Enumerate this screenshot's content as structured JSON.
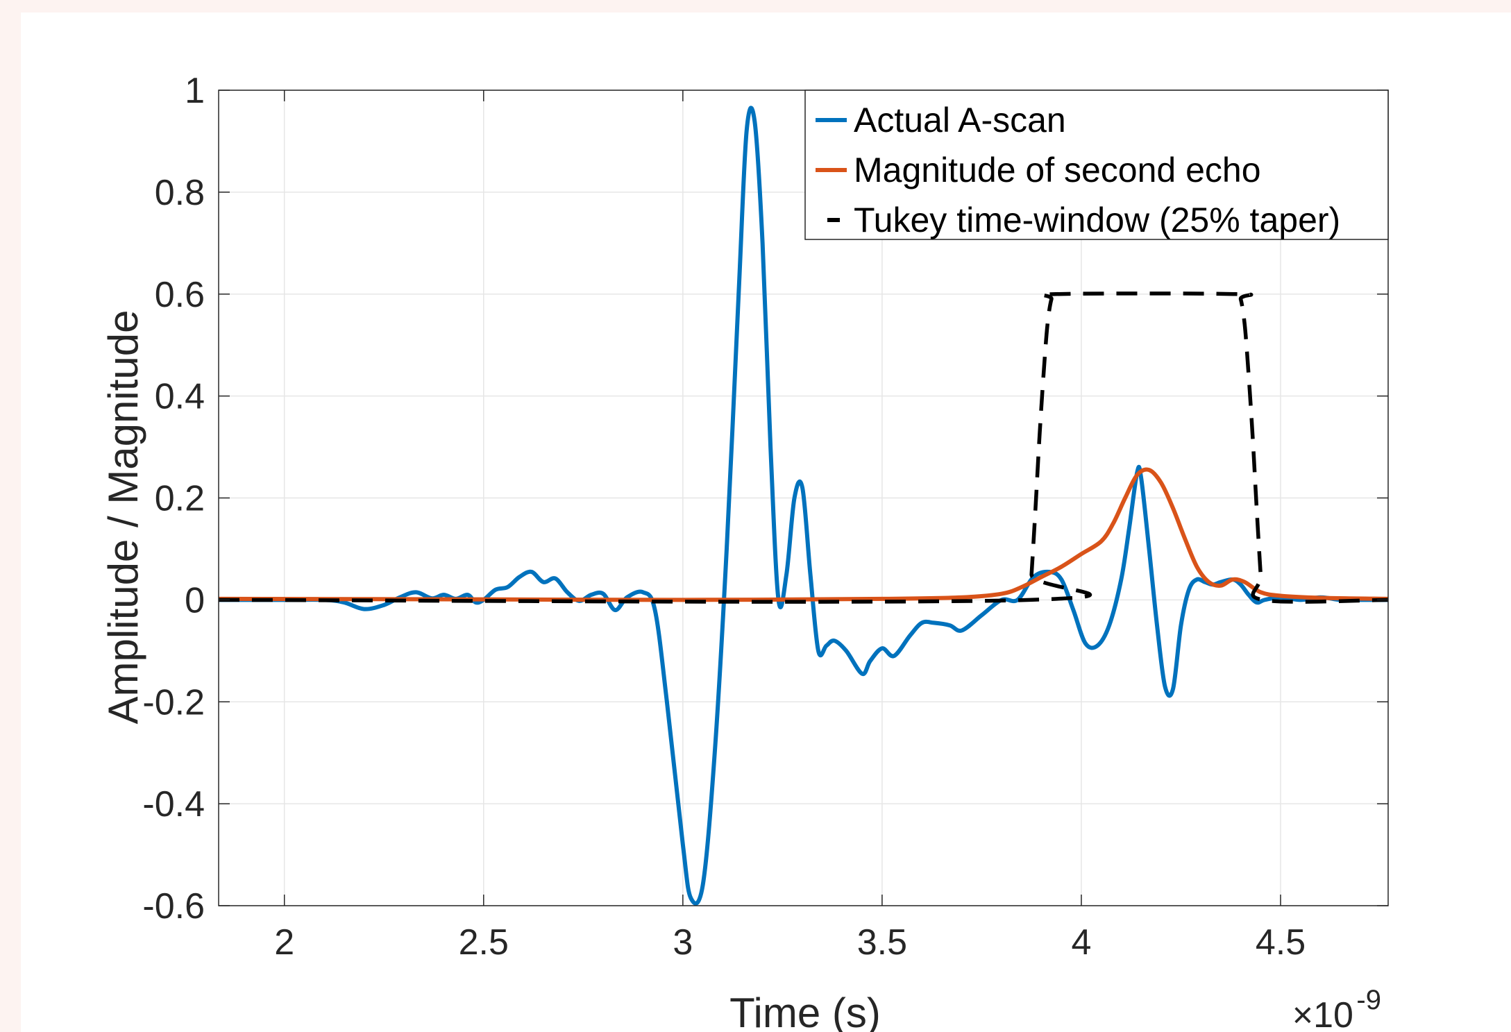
{
  "chart_data": {
    "type": "line",
    "xlabel": "Time (s)",
    "ylabel": "Amplitude / Magnitude",
    "x_multiplier": {
      "base": "×10",
      "exponent": "-9"
    },
    "xlim": [
      1.835,
      4.77
    ],
    "ylim": [
      -0.6,
      1.0
    ],
    "xticks": [
      2,
      2.5,
      3,
      3.5,
      4,
      4.5
    ],
    "xtick_labels": [
      "2",
      "2.5",
      "3",
      "3.5",
      "4",
      "4.5"
    ],
    "yticks": [
      -0.6,
      -0.4,
      -0.2,
      0,
      0.2,
      0.4,
      0.6,
      0.8,
      1
    ],
    "ytick_labels": [
      "-0.6",
      "-0.4",
      "-0.2",
      "0",
      "0.2",
      "0.4",
      "0.6",
      "0.8",
      "1"
    ],
    "grid": true,
    "legend_position": "top-right",
    "series": [
      {
        "name": "Actual A-scan",
        "color": "#0072bd",
        "style": "solid",
        "x": [
          1.835,
          2.0,
          2.1,
          2.15,
          2.2,
          2.25,
          2.29,
          2.33,
          2.37,
          2.4,
          2.43,
          2.46,
          2.48,
          2.5,
          2.53,
          2.56,
          2.59,
          2.62,
          2.65,
          2.68,
          2.71,
          2.74,
          2.77,
          2.8,
          2.83,
          2.86,
          2.9,
          2.93,
          2.96,
          3.0,
          3.02,
          3.05,
          3.08,
          3.11,
          3.14,
          3.16,
          3.18,
          3.2,
          3.22,
          3.24,
          3.26,
          3.28,
          3.3,
          3.32,
          3.34,
          3.36,
          3.38,
          3.41,
          3.45,
          3.47,
          3.5,
          3.53,
          3.57,
          3.6,
          3.63,
          3.67,
          3.7,
          3.75,
          3.8,
          3.84,
          3.88,
          3.92,
          3.95,
          3.98,
          4.01,
          4.04,
          4.07,
          4.1,
          4.12,
          4.14,
          4.15,
          4.17,
          4.19,
          4.21,
          4.23,
          4.25,
          4.27,
          4.29,
          4.31,
          4.33,
          4.35,
          4.38,
          4.4,
          4.42,
          4.44,
          4.46,
          4.5,
          4.55,
          4.6,
          4.65,
          4.7,
          4.77
        ],
        "y": [
          0.0,
          0.0,
          0.0,
          -0.005,
          -0.018,
          -0.01,
          0.005,
          0.015,
          0.003,
          0.01,
          0.002,
          0.01,
          -0.005,
          0.0,
          0.02,
          0.025,
          0.045,
          0.055,
          0.035,
          0.042,
          0.015,
          -0.002,
          0.01,
          0.012,
          -0.02,
          0.005,
          0.015,
          -0.02,
          -0.2,
          -0.48,
          -0.585,
          -0.56,
          -0.3,
          0.1,
          0.6,
          0.92,
          0.94,
          0.7,
          0.3,
          0.0,
          0.05,
          0.2,
          0.22,
          0.05,
          -0.1,
          -0.09,
          -0.08,
          -0.1,
          -0.145,
          -0.12,
          -0.095,
          -0.11,
          -0.07,
          -0.045,
          -0.045,
          -0.05,
          -0.06,
          -0.03,
          0.0,
          0.0,
          0.045,
          0.055,
          0.04,
          -0.02,
          -0.085,
          -0.09,
          -0.05,
          0.04,
          0.14,
          0.25,
          0.24,
          0.1,
          -0.05,
          -0.17,
          -0.175,
          -0.05,
          0.02,
          0.04,
          0.035,
          0.03,
          0.035,
          0.04,
          0.03,
          0.01,
          -0.005,
          0.0,
          0.005,
          0.0,
          0.005,
          0.0,
          0.0,
          0.0
        ]
      },
      {
        "name": "Magnitude of second echo",
        "color": "#d95319",
        "style": "solid",
        "x": [
          1.835,
          2.5,
          3.0,
          3.5,
          3.7,
          3.8,
          3.85,
          3.9,
          3.95,
          4.0,
          4.05,
          4.08,
          4.11,
          4.14,
          4.17,
          4.2,
          4.23,
          4.26,
          4.29,
          4.32,
          4.35,
          4.38,
          4.41,
          4.45,
          4.5,
          4.6,
          4.77
        ],
        "y": [
          0.002,
          0.001,
          0.0,
          0.002,
          0.005,
          0.012,
          0.025,
          0.045,
          0.065,
          0.09,
          0.115,
          0.15,
          0.2,
          0.245,
          0.255,
          0.23,
          0.18,
          0.12,
          0.065,
          0.035,
          0.028,
          0.04,
          0.035,
          0.015,
          0.008,
          0.004,
          0.002
        ]
      },
      {
        "name": "Tukey time-window (25% taper)",
        "color": "#000000",
        "style": "dashed",
        "x": [
          1.835,
          3.87,
          3.875,
          3.885,
          3.895,
          3.905,
          3.915,
          3.925,
          3.935,
          4.39,
          4.4,
          4.41,
          4.42,
          4.43,
          4.44,
          4.45,
          4.455,
          4.77
        ],
        "y": [
          0.0,
          0.0,
          0.05,
          0.18,
          0.32,
          0.44,
          0.54,
          0.59,
          0.6,
          0.6,
          0.59,
          0.54,
          0.44,
          0.32,
          0.18,
          0.05,
          0.0,
          0.0
        ]
      }
    ]
  }
}
